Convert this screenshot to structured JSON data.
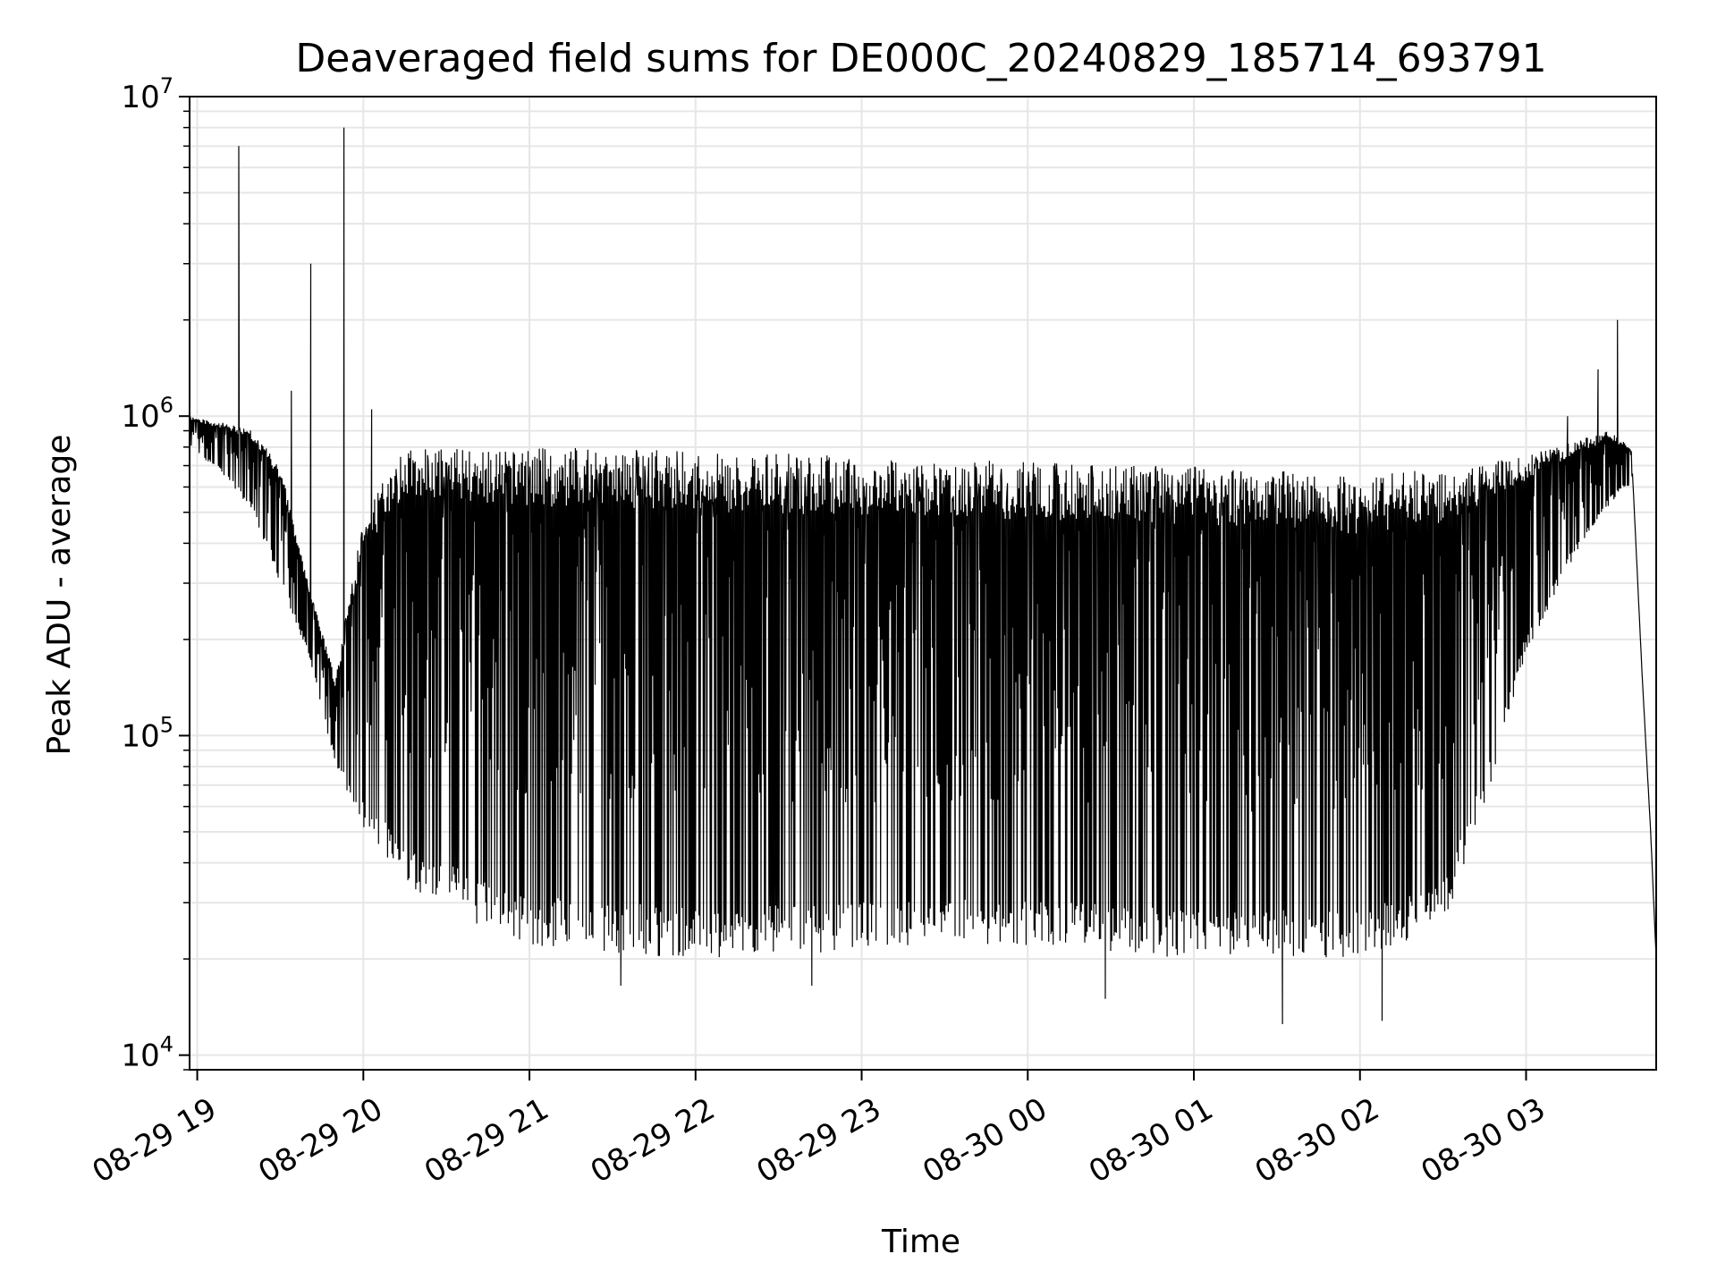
{
  "chart_data": {
    "type": "line",
    "title": "Deaveraged field sums for DE000C_20240829_185714_693791",
    "xlabel": "Time",
    "ylabel": "Peak ADU - average",
    "yscale": "log",
    "ylim": [
      9000,
      10000000
    ],
    "xlim": [
      "2024-08-29 18:57:14",
      "2024-08-30 03:47:00"
    ],
    "grid": true,
    "line_color": "#000000",
    "grid_color": "#e6e6e6",
    "x_ticks": [
      {
        "time": "2024-08-29 19:00",
        "label": "08-29 19"
      },
      {
        "time": "2024-08-29 20:00",
        "label": "08-29 20"
      },
      {
        "time": "2024-08-29 21:00",
        "label": "08-29 21"
      },
      {
        "time": "2024-08-29 22:00",
        "label": "08-29 22"
      },
      {
        "time": "2024-08-29 23:00",
        "label": "08-29 23"
      },
      {
        "time": "2024-08-30 00:00",
        "label": "08-30 00"
      },
      {
        "time": "2024-08-30 01:00",
        "label": "08-30 01"
      },
      {
        "time": "2024-08-30 02:00",
        "label": "08-30 02"
      },
      {
        "time": "2024-08-30 03:00",
        "label": "08-30 03"
      }
    ],
    "y_ticks": [
      {
        "value": 10000,
        "base": "10",
        "exp": "4"
      },
      {
        "value": 100000,
        "base": "10",
        "exp": "5"
      },
      {
        "value": 1000000,
        "base": "10",
        "exp": "6"
      },
      {
        "value": 10000000,
        "base": "10",
        "exp": "7"
      }
    ],
    "series": [
      {
        "envelope_upper": [
          {
            "time": "2024-08-29 18:57:14",
            "value": 1000000
          },
          {
            "time": "2024-08-29 19:10",
            "value": 950000
          },
          {
            "time": "2024-08-29 19:20",
            "value": 900000
          },
          {
            "time": "2024-08-29 19:30",
            "value": 700000
          },
          {
            "time": "2024-08-29 19:40",
            "value": 300000
          },
          {
            "time": "2024-08-29 19:50",
            "value": 150000
          },
          {
            "time": "2024-08-29 20:00",
            "value": 500000
          },
          {
            "time": "2024-08-29 20:15",
            "value": 800000
          },
          {
            "time": "2024-08-29 21:00",
            "value": 800000
          },
          {
            "time": "2024-08-29 22:00",
            "value": 780000
          },
          {
            "time": "2024-08-29 23:00",
            "value": 750000
          },
          {
            "time": "2024-08-30 00:00",
            "value": 720000
          },
          {
            "time": "2024-08-30 01:00",
            "value": 700000
          },
          {
            "time": "2024-08-30 02:00",
            "value": 650000
          },
          {
            "time": "2024-08-30 02:40",
            "value": 700000
          },
          {
            "time": "2024-08-30 03:00",
            "value": 750000
          },
          {
            "time": "2024-08-30 03:30",
            "value": 900000
          },
          {
            "time": "2024-08-30 03:38",
            "value": 800000
          },
          {
            "time": "2024-08-30 03:42",
            "value": 150000
          },
          {
            "time": "2024-08-30 03:45",
            "value": 50000
          },
          {
            "time": "2024-08-30 03:47",
            "value": 20000
          }
        ],
        "envelope_lower": [
          {
            "time": "2024-08-29 18:57:14",
            "value": 800000
          },
          {
            "time": "2024-08-29 19:10",
            "value": 650000
          },
          {
            "time": "2024-08-29 19:20",
            "value": 500000
          },
          {
            "time": "2024-08-29 19:30",
            "value": 300000
          },
          {
            "time": "2024-08-29 19:40",
            "value": 180000
          },
          {
            "time": "2024-08-29 19:50",
            "value": 80000
          },
          {
            "time": "2024-08-29 20:00",
            "value": 50000
          },
          {
            "time": "2024-08-29 20:20",
            "value": 32000
          },
          {
            "time": "2024-08-29 20:40",
            "value": 26000
          },
          {
            "time": "2024-08-29 21:00",
            "value": 22000
          },
          {
            "time": "2024-08-29 22:00",
            "value": 20000
          },
          {
            "time": "2024-08-29 23:00",
            "value": 21000
          },
          {
            "time": "2024-08-30 00:00",
            "value": 22000
          },
          {
            "time": "2024-08-30 01:00",
            "value": 20000
          },
          {
            "time": "2024-08-30 02:00",
            "value": 20000
          },
          {
            "time": "2024-08-30 02:30",
            "value": 25000
          },
          {
            "time": "2024-08-30 02:45",
            "value": 60000
          },
          {
            "time": "2024-08-30 03:00",
            "value": 180000
          },
          {
            "time": "2024-08-30 03:20",
            "value": 400000
          },
          {
            "time": "2024-08-30 03:35",
            "value": 600000
          }
        ],
        "peaks": [
          {
            "time": "2024-08-29 19:15",
            "value": 7000000
          },
          {
            "time": "2024-08-29 19:41",
            "value": 3000000
          },
          {
            "time": "2024-08-29 19:53",
            "value": 8000000
          },
          {
            "time": "2024-08-29 19:34",
            "value": 1200000
          },
          {
            "time": "2024-08-29 20:03",
            "value": 1050000
          },
          {
            "time": "2024-08-30 03:15",
            "value": 1000000
          },
          {
            "time": "2024-08-30 03:26",
            "value": 1400000
          },
          {
            "time": "2024-08-30 03:33",
            "value": 2000000
          }
        ],
        "dips": [
          {
            "time": "2024-08-30 01:32",
            "value": 12500
          },
          {
            "time": "2024-08-30 02:08",
            "value": 12800
          },
          {
            "time": "2024-08-30 00:28",
            "value": 15000
          },
          {
            "time": "2024-08-29 21:33",
            "value": 16500
          },
          {
            "time": "2024-08-29 22:42",
            "value": 16500
          }
        ]
      }
    ]
  }
}
